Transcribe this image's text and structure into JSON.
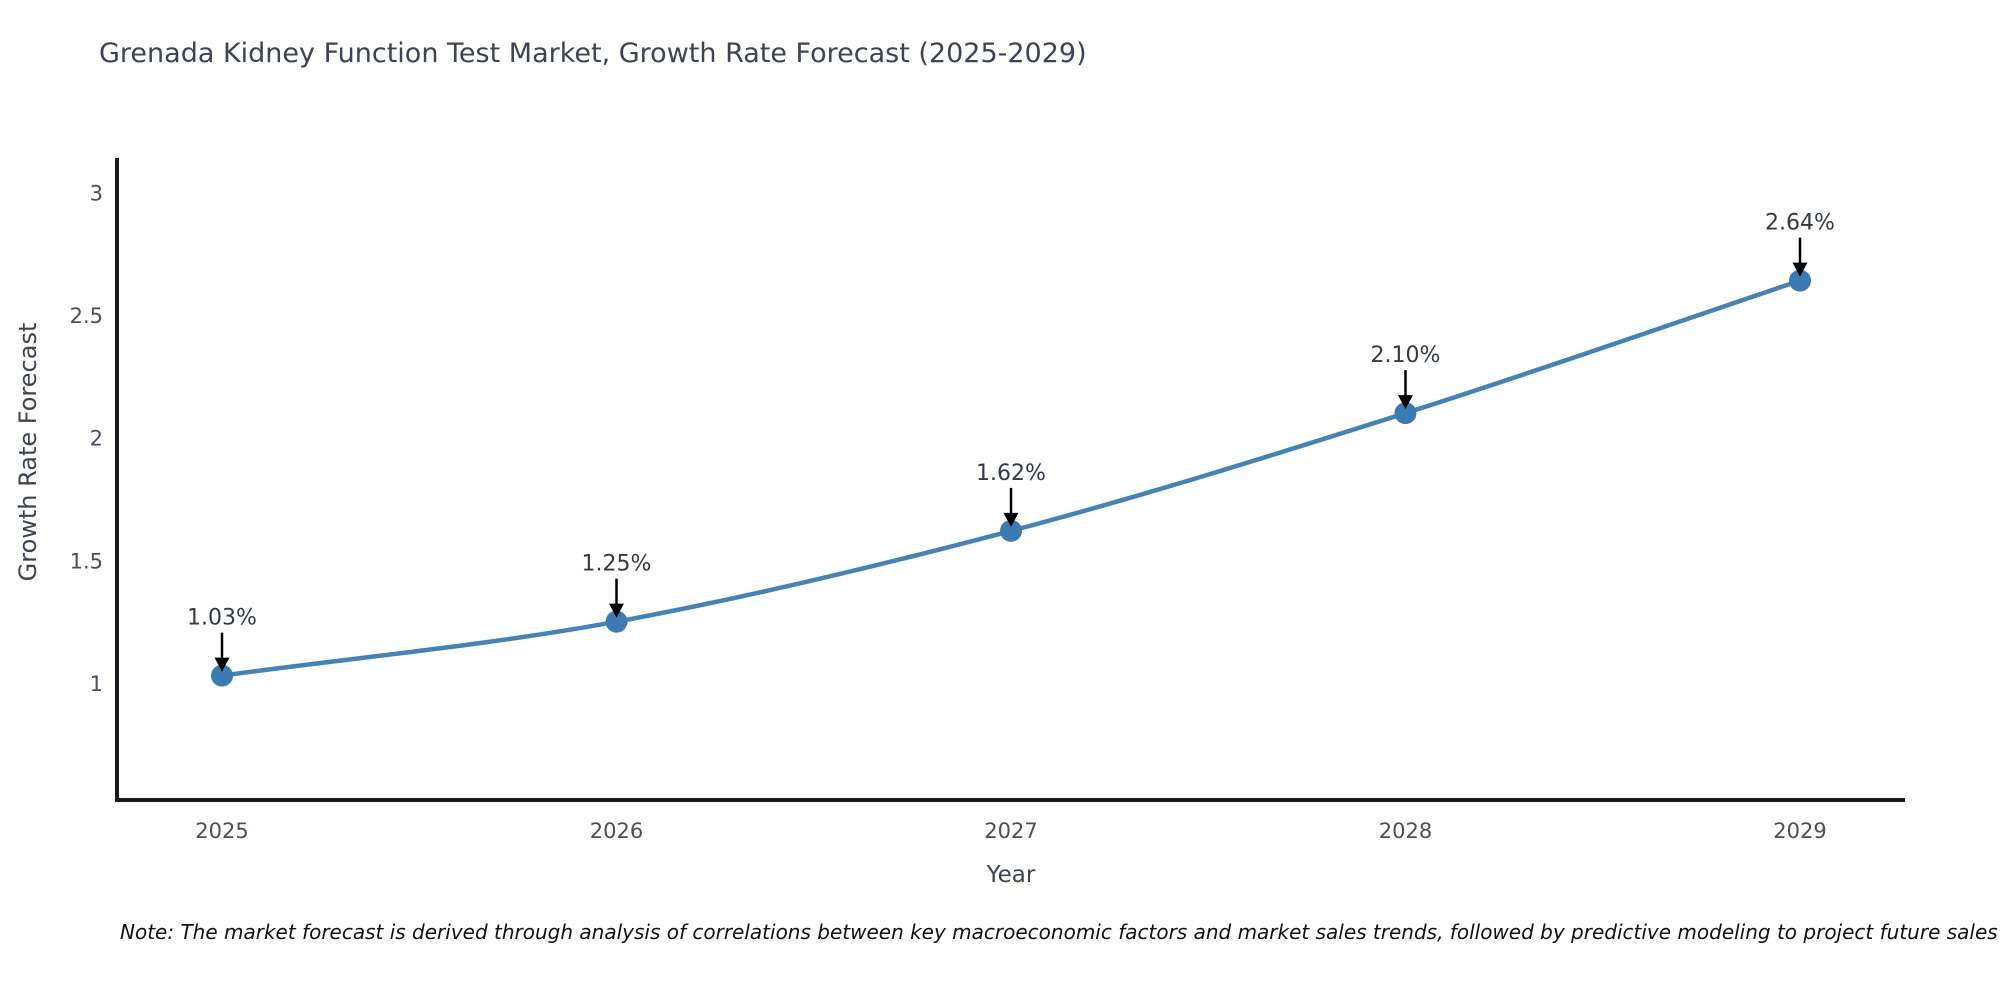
{
  "page": {
    "background": "#ffffff"
  },
  "chart_data": {
    "type": "line",
    "title": "Grenada Kidney Function Test Market, Growth Rate Forecast (2025-2029)",
    "xlabel": "Year",
    "ylabel": "Growth Rate Forecast",
    "categories": [
      "2025",
      "2026",
      "2027",
      "2028",
      "2029"
    ],
    "series": [
      {
        "name": "Growth Rate Forecast",
        "values": [
          1.03,
          1.25,
          1.62,
          2.1,
          2.64
        ]
      }
    ],
    "data_labels": [
      "1.03%",
      "1.25%",
      "1.62%",
      "2.10%",
      "2.64%"
    ],
    "ytick_values": [
      1,
      1.5,
      2,
      2.5,
      3
    ],
    "ytick_labels": [
      "1",
      "1.5",
      "2",
      "2.5",
      "3"
    ],
    "ylim": [
      0.52,
      3.14
    ],
    "grid": false,
    "legend": "none",
    "marker_style": "circle",
    "annotation_style": "value-label-with-down-arrow",
    "note": "Note: The market forecast is derived through analysis of correlations between key macroeconomic factors and market sales trends, followed by predictive modeling to project future sales"
  },
  "colors": {
    "line": "#4682b4",
    "marker": "#3d7ab4",
    "axis": "#1a1a1a",
    "title_text": "#3e4257",
    "axis_title_text": "#3e4257",
    "tick_text": "#4a4e60",
    "annotation_text": "#33394a",
    "annotation_arrow": "#000000",
    "note_text": "#111111"
  }
}
